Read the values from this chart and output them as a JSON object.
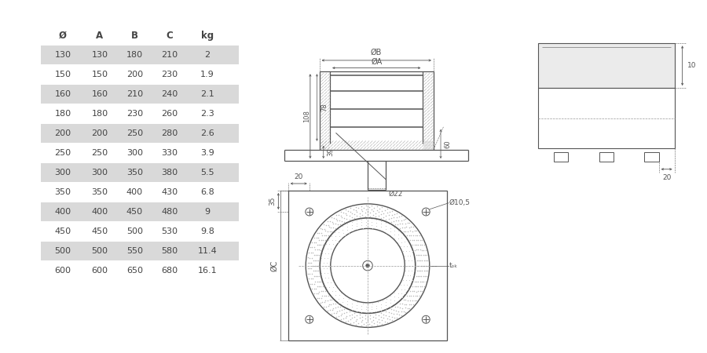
{
  "table_headers": [
    "Ø",
    "A",
    "B",
    "C",
    "kg"
  ],
  "table_data": [
    [
      130,
      130,
      180,
      210,
      2.0
    ],
    [
      150,
      150,
      200,
      230,
      1.9
    ],
    [
      160,
      160,
      210,
      240,
      2.1
    ],
    [
      180,
      180,
      230,
      260,
      2.3
    ],
    [
      200,
      200,
      250,
      280,
      2.6
    ],
    [
      250,
      250,
      300,
      330,
      3.9
    ],
    [
      300,
      300,
      350,
      380,
      5.5
    ],
    [
      350,
      350,
      400,
      430,
      6.8
    ],
    [
      400,
      400,
      450,
      480,
      9.0
    ],
    [
      450,
      450,
      500,
      530,
      9.8
    ],
    [
      500,
      500,
      550,
      580,
      11.4
    ],
    [
      600,
      600,
      650,
      680,
      16.1
    ]
  ],
  "shaded_rows": [
    0,
    2,
    4,
    6,
    8,
    10
  ],
  "row_bg_shaded": "#d9d9d9",
  "row_bg_plain": "#ffffff",
  "text_color": "#444444",
  "line_color": "#555555",
  "bg_color": "#ffffff"
}
